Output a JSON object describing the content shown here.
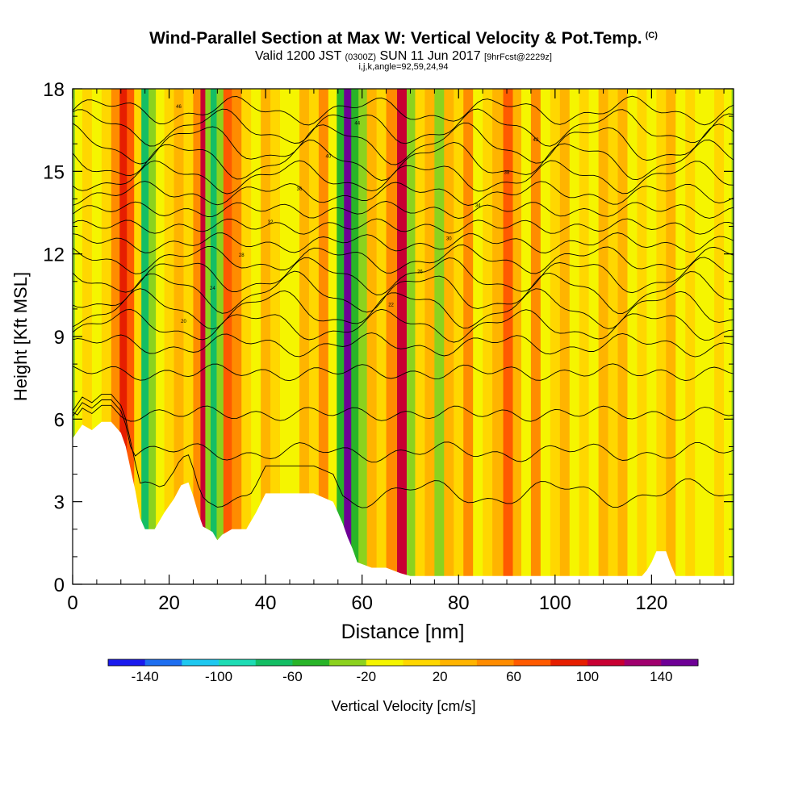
{
  "header": {
    "title": "Wind-Parallel Section at Max W: Vertical Velocity & Pot.Temp.",
    "copyright_mark": "(C)",
    "valid_prefix": "Valid 1200 JST",
    "valid_zulu": "(0300Z)",
    "valid_date": "SUN 11 Jun 2017",
    "forecast_info": "[9hrFcst@2229z]",
    "indices": "i,j,k,angle=92,59,24,94"
  },
  "chart_data": {
    "type": "heatmap",
    "title": "Wind-Parallel Section at Max W: Vertical Velocity & Pot.Temp.",
    "xlabel": "Distance [nm]",
    "ylabel": "Height [Kft MSL]",
    "xlim": [
      0,
      137
    ],
    "ylim": [
      0,
      18
    ],
    "x_ticks": [
      0,
      20,
      40,
      60,
      80,
      100,
      120
    ],
    "y_ticks": [
      0,
      3,
      6,
      9,
      12,
      15,
      18
    ],
    "colorbar": {
      "label": "Vertical Velocity [cm/s]",
      "levels": [
        -160,
        -140,
        -120,
        -100,
        -80,
        -60,
        -40,
        -20,
        0,
        20,
        40,
        60,
        80,
        100,
        120,
        140,
        160
      ],
      "tick_labels": [
        "-140",
        "-100",
        "-60",
        "-20",
        "20",
        "60",
        "100",
        "140"
      ],
      "tick_values": [
        -140,
        -100,
        -60,
        -20,
        20,
        60,
        100,
        140
      ],
      "colors": [
        "#1a1aee",
        "#1e6ef0",
        "#1ec8f0",
        "#1edcb4",
        "#14be64",
        "#28b428",
        "#8cd21e",
        "#f5f500",
        "#ffd700",
        "#ffb400",
        "#ff8c00",
        "#ff5a00",
        "#e61e00",
        "#c80032",
        "#a0006e",
        "#6e0096"
      ]
    },
    "velocity_columns": [
      {
        "x": 1,
        "w": -20
      },
      {
        "x": 3,
        "w": 15
      },
      {
        "x": 5,
        "w": -10
      },
      {
        "x": 7,
        "w": 10
      },
      {
        "x": 9,
        "w": 50
      },
      {
        "x": 10.5,
        "w": 95
      },
      {
        "x": 12,
        "w": 60
      },
      {
        "x": 13.5,
        "w": 10
      },
      {
        "x": 15,
        "w": -75
      },
      {
        "x": 16.5,
        "w": -30
      },
      {
        "x": 18,
        "w": -10
      },
      {
        "x": 20,
        "w": 15
      },
      {
        "x": 22,
        "w": 25
      },
      {
        "x": 24,
        "w": 10
      },
      {
        "x": 26,
        "w": 50
      },
      {
        "x": 27,
        "w": 110
      },
      {
        "x": 28,
        "w": -40
      },
      {
        "x": 29.2,
        "w": -70
      },
      {
        "x": 30.5,
        "w": -25
      },
      {
        "x": 32,
        "w": 60
      },
      {
        "x": 34,
        "w": 40
      },
      {
        "x": 36,
        "w": 15
      },
      {
        "x": 38,
        "w": -10
      },
      {
        "x": 40,
        "w": 25
      },
      {
        "x": 42,
        "w": 15
      },
      {
        "x": 44,
        "w": -20
      },
      {
        "x": 46,
        "w": -10
      },
      {
        "x": 48,
        "w": 25
      },
      {
        "x": 50,
        "w": 15
      },
      {
        "x": 52,
        "w": 40
      },
      {
        "x": 54,
        "w": -20
      },
      {
        "x": 55.5,
        "w": -45
      },
      {
        "x": 57,
        "w": 150
      },
      {
        "x": 58.5,
        "w": -60
      },
      {
        "x": 60,
        "w": -30
      },
      {
        "x": 62,
        "w": 30
      },
      {
        "x": 64,
        "w": 15
      },
      {
        "x": 66,
        "w": 45
      },
      {
        "x": 68.5,
        "w": 110
      },
      {
        "x": 70,
        "w": -30
      },
      {
        "x": 72,
        "w": 15
      },
      {
        "x": 74,
        "w": 25
      },
      {
        "x": 76,
        "w": -25
      },
      {
        "x": 78,
        "w": 20
      },
      {
        "x": 80,
        "w": 15
      },
      {
        "x": 82,
        "w": 40
      },
      {
        "x": 84,
        "w": -20
      },
      {
        "x": 86,
        "w": 15
      },
      {
        "x": 88,
        "w": 25
      },
      {
        "x": 90.5,
        "w": 70
      },
      {
        "x": 92,
        "w": 20
      },
      {
        "x": 94,
        "w": -15
      },
      {
        "x": 96,
        "w": 45
      },
      {
        "x": 98,
        "w": -20
      },
      {
        "x": 100,
        "w": 15
      },
      {
        "x": 102,
        "w": 25
      },
      {
        "x": 104,
        "w": -10
      },
      {
        "x": 106,
        "w": 15
      },
      {
        "x": 108,
        "w": -20
      },
      {
        "x": 110,
        "w": 20
      },
      {
        "x": 112,
        "w": 10
      },
      {
        "x": 114,
        "w": 25
      },
      {
        "x": 116,
        "w": -15
      },
      {
        "x": 118,
        "w": 15
      },
      {
        "x": 120,
        "w": -10
      },
      {
        "x": 122,
        "w": 15
      },
      {
        "x": 124,
        "w": 20
      },
      {
        "x": 126,
        "w": -15
      },
      {
        "x": 128,
        "w": 10
      },
      {
        "x": 130,
        "w": -20
      },
      {
        "x": 132,
        "w": -10
      },
      {
        "x": 134,
        "w": 15
      },
      {
        "x": 136,
        "w": -20
      }
    ],
    "terrain_kft": [
      [
        0,
        5.3
      ],
      [
        2,
        5.8
      ],
      [
        4,
        5.6
      ],
      [
        6,
        5.9
      ],
      [
        8,
        5.9
      ],
      [
        10,
        5.5
      ],
      [
        11,
        5.0
      ],
      [
        12,
        4.2
      ],
      [
        13,
        3.4
      ],
      [
        14,
        2.4
      ],
      [
        15,
        2.0
      ],
      [
        17,
        2.0
      ],
      [
        18,
        2.3
      ],
      [
        19,
        2.6
      ],
      [
        21,
        3.1
      ],
      [
        22.5,
        3.6
      ],
      [
        24,
        3.7
      ],
      [
        25,
        3.2
      ],
      [
        26,
        2.6
      ],
      [
        27,
        2.1
      ],
      [
        28,
        2.0
      ],
      [
        29,
        1.9
      ],
      [
        30,
        1.6
      ],
      [
        31,
        1.8
      ],
      [
        33,
        2.0
      ],
      [
        36,
        2.0
      ],
      [
        38,
        2.6
      ],
      [
        40,
        3.3
      ],
      [
        44,
        3.3
      ],
      [
        50,
        3.3
      ],
      [
        54,
        3.0
      ],
      [
        55,
        2.6
      ],
      [
        56,
        2.2
      ],
      [
        57,
        1.7
      ],
      [
        58,
        1.3
      ],
      [
        59,
        0.8
      ],
      [
        62,
        0.6
      ],
      [
        65,
        0.6
      ],
      [
        68,
        0.4
      ],
      [
        70,
        0.3
      ],
      [
        80,
        0.3
      ],
      [
        100,
        0.3
      ],
      [
        118,
        0.3
      ],
      [
        119,
        0.5
      ],
      [
        120,
        0.8
      ],
      [
        121,
        1.2
      ],
      [
        123,
        1.2
      ],
      [
        124,
        0.7
      ],
      [
        125,
        0.3
      ],
      [
        137,
        0.3
      ]
    ],
    "theta_isentropes": {
      "label_values": [
        "46",
        "44",
        "42",
        "40",
        "38",
        "36",
        "34",
        "32",
        "30",
        "28",
        "26",
        "24",
        "22",
        "20"
      ],
      "heights_kft": [
        17.2,
        16.6,
        16.0,
        15.4,
        14.8,
        14.2,
        13.6,
        13.0,
        12.4,
        11.8,
        11.2,
        10.6,
        10.0,
        9.4,
        8.7,
        7.7,
        6.2,
        4.8,
        3.3
      ]
    }
  }
}
